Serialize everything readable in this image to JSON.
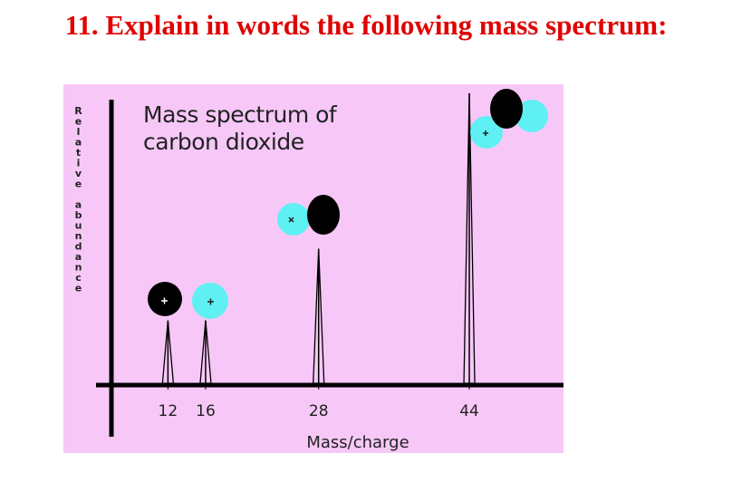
{
  "slide_title": "11. Explain in words the following mass spectrum:",
  "chart_data": {
    "type": "spectrum",
    "title": "Mass spectrum of\ncarbon dioxide",
    "x_label": "Mass/charge",
    "y_label": "Relative abundance",
    "x": [
      12,
      16,
      28,
      44
    ],
    "values": [
      21,
      21,
      45,
      97
    ],
    "xlim": [
      6,
      54
    ],
    "ylim": [
      0,
      100
    ],
    "xticks": [
      12,
      16,
      28,
      44
    ],
    "color": "#000000",
    "background": "#f7c8f7"
  }
}
